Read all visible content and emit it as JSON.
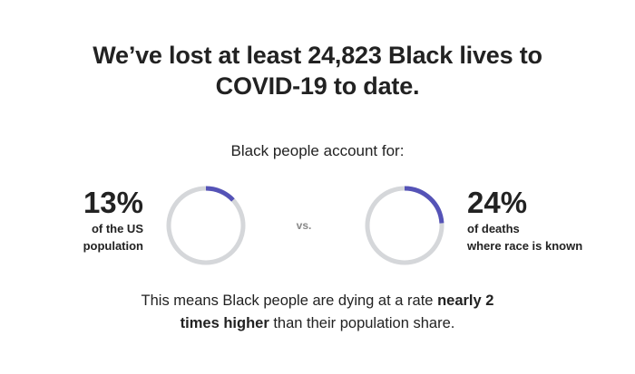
{
  "headline": {
    "line1": "We’ve lost at least 24,823 Black lives to",
    "line2": "COVID-19 to date."
  },
  "subhead": "Black people account for:",
  "comparison": {
    "left": {
      "value_text": "13%",
      "label_line1": "of the US",
      "label_line2": "population"
    },
    "vs": "vs.",
    "right": {
      "value_text": "24%",
      "label_line1": "of deaths",
      "label_line2": "where race is known"
    }
  },
  "conclusion": {
    "part1": "This means Black people are dying at a rate ",
    "bold1": "nearly 2",
    "bold2": "times higher",
    "part2": " than their population share."
  },
  "colors": {
    "accent": "#5553b7",
    "track": "#d5d7da",
    "text": "#222222",
    "muted": "#888888"
  },
  "chart_data": [
    {
      "type": "pie",
      "variant": "donut",
      "values": [
        13,
        87
      ],
      "categories": [
        "Black share of US population",
        "Other"
      ]
    },
    {
      "type": "pie",
      "variant": "donut",
      "values": [
        24,
        76
      ],
      "categories": [
        "Black share of deaths where race is known",
        "Other"
      ]
    }
  ]
}
